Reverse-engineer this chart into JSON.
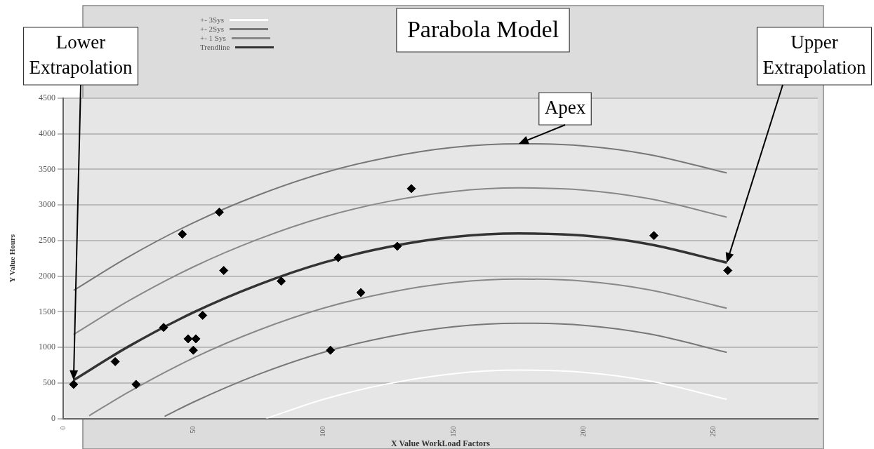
{
  "chart_data": {
    "type": "scatter",
    "title": "Parabola Model",
    "xlabel": "X Value WorkLoad Factors",
    "ylabel": "Y Value Hours",
    "xlim": [
      0,
      290
    ],
    "xticks": [
      0,
      50,
      100,
      150,
      200,
      250
    ],
    "ylim": [
      0,
      4500
    ],
    "yticks": [
      0,
      500,
      1000,
      1500,
      2000,
      2500,
      3000,
      3500,
      4000,
      4500
    ],
    "grid": "y",
    "legend": "top left",
    "series": [
      {
        "marker": "diamond",
        "color": "#000000",
        "x": [
          4,
          20,
          28,
          38.6,
          45.8,
          48,
          51,
          50,
          53.6,
          60,
          61.7,
          83.8,
          102.7,
          105.7,
          114.4,
          128.4,
          133.8,
          227,
          255.4
        ],
        "values": [
          480,
          800,
          480,
          1280,
          2590,
          1120,
          1120,
          960,
          1450,
          2900,
          2080,
          1930,
          960,
          2260,
          1770,
          2420,
          3230,
          2570,
          2080
        ]
      },
      {
        "type": "line",
        "name": "+- 3Sys",
        "color": "#ffffff",
        "x": [
          78,
          100,
          125,
          150,
          175,
          200,
          225,
          255
        ],
        "values": [
          0,
          270,
          490,
          630,
          680,
          650,
          530,
          270
        ]
      },
      {
        "type": "line",
        "name": "+- 2Sys",
        "color": "#777777",
        "x": [
          4,
          25,
          50,
          75,
          100,
          125,
          150,
          175,
          200,
          225,
          255
        ],
        "values": [
          1800,
          2270,
          2750,
          3140,
          3450,
          3670,
          3810,
          3860,
          3830,
          3710,
          3450
        ]
      },
      {
        "type": "line",
        "color": "#777777",
        "x": [
          39,
          50,
          75,
          100,
          125,
          150,
          175,
          200,
          225,
          255
        ],
        "values": [
          30,
          230,
          620,
          930,
          1150,
          1290,
          1340,
          1310,
          1190,
          930
        ]
      },
      {
        "type": "line",
        "name": "+- 1 Sys",
        "color": "#888888",
        "x": [
          4,
          25,
          50,
          75,
          100,
          125,
          150,
          175,
          200,
          225,
          255
        ],
        "values": [
          1180,
          1650,
          2130,
          2520,
          2830,
          3050,
          3190,
          3240,
          3210,
          3090,
          2830
        ]
      },
      {
        "type": "line",
        "color": "#888888",
        "x": [
          10,
          25,
          50,
          75,
          100,
          125,
          150,
          175,
          200,
          225,
          255
        ],
        "values": [
          40,
          370,
          850,
          1240,
          1550,
          1770,
          1910,
          1960,
          1930,
          1810,
          1550
        ]
      },
      {
        "type": "line",
        "name": "Trendline",
        "color": "#333333",
        "x": [
          4,
          25,
          50,
          75,
          100,
          125,
          150,
          175,
          200,
          225,
          255
        ],
        "values": [
          540,
          1010,
          1490,
          1880,
          2190,
          2410,
          2550,
          2600,
          2570,
          2450,
          2190
        ]
      }
    ],
    "annotations": [
      {
        "text": "Lower Extrapolation",
        "x": 4,
        "y": 540
      },
      {
        "text": "Apex",
        "x": 175,
        "y": 3860
      },
      {
        "text": "Upper Extrapolation",
        "x": 255,
        "y": 2190
      }
    ]
  }
}
